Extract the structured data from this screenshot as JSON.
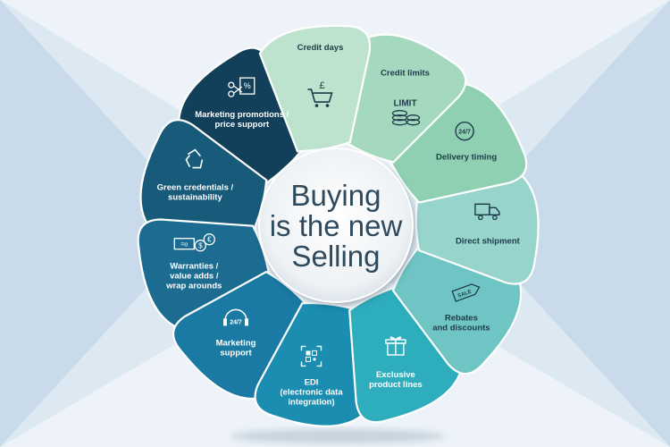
{
  "center": {
    "lines": [
      "Buying",
      "is the new",
      "Selling"
    ]
  },
  "segments": [
    {
      "id": "credit-days",
      "lines": [
        "Credit days"
      ],
      "color": "#bde3ce",
      "text_color": "#1f3b4a",
      "icon": "shopping-cart-pound-icon"
    },
    {
      "id": "credit-limits",
      "lines": [
        "Credit limits"
      ],
      "color": "#a4d8bf",
      "text_color": "#1f3b4a",
      "icon": "limit-coins-icon",
      "icon_text": "LIMIT"
    },
    {
      "id": "delivery-timing",
      "lines": [
        "Delivery timing"
      ],
      "color": "#8fd0b3",
      "text_color": "#1f3b4a",
      "icon": "clock-24-7-icon",
      "icon_text": "24/7"
    },
    {
      "id": "direct-shipment",
      "lines": [
        "Direct shipment"
      ],
      "color": "#96d4cc",
      "text_color": "#1f3b4a",
      "icon": "delivery-truck-icon"
    },
    {
      "id": "rebates-discounts",
      "lines": [
        "Rebates",
        "and discounts"
      ],
      "color": "#6ec5c3",
      "text_color": "#1f3b4a",
      "icon": "sale-tag-icon",
      "icon_text": "SALE"
    },
    {
      "id": "exclusive-product-lines",
      "lines": [
        "Exclusive",
        "product lines"
      ],
      "color": "#2eaebd",
      "text_color": "#ffffff",
      "icon": "gift-box-icon"
    },
    {
      "id": "edi",
      "lines": [
        "EDI",
        "(electronic data",
        "integration)"
      ],
      "color": "#1a8db0",
      "text_color": "#ffffff",
      "icon": "qr-code-icon"
    },
    {
      "id": "marketing-support",
      "lines": [
        "Marketing",
        "support"
      ],
      "color": "#1a7aa3",
      "text_color": "#ffffff",
      "icon": "headset-24-7-icon",
      "icon_text": "24/7"
    },
    {
      "id": "warranties",
      "lines": [
        "Warranties /",
        "value adds /",
        "wrap arounds"
      ],
      "color": "#1c6c92",
      "text_color": "#ffffff",
      "icon": "money-exchange-icon"
    },
    {
      "id": "green-credentials",
      "lines": [
        "Green credentials /",
        "sustainability"
      ],
      "color": "#175a79",
      "text_color": "#ffffff",
      "icon": "recycle-icon"
    },
    {
      "id": "marketing-promotions",
      "lines": [
        "Marketing promotions /",
        "price support"
      ],
      "color": "#123f5a",
      "text_color": "#ffffff",
      "icon": "scissors-coupon-icon"
    }
  ],
  "colors": {
    "background_light": "#dde9f2",
    "background_dark": "#c7dbea",
    "center_fill": "#f3f6f8",
    "center_text": "#2e4a5c"
  }
}
